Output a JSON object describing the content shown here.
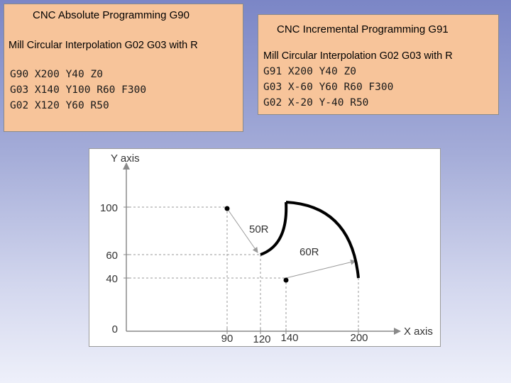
{
  "absolute": {
    "title": "CNC Absolute Programming G90",
    "subtitle": "Mill Circular Interpolation G02 G03 with R",
    "code": [
      "G90 X200 Y40 Z0",
      "G03 X140 Y100 R60 F300",
      "G02 X120 Y60 R50"
    ]
  },
  "incremental": {
    "title": "CNC Incremental Programming G91",
    "subtitle": "Mill Circular Interpolation G02 G03 with R",
    "code": [
      "G91 X200 Y40 Z0",
      "G03 X-60 Y60 R60 F300",
      "G02 X-20 Y-40 R50"
    ]
  },
  "diagram": {
    "y_axis_label": "Y axis",
    "x_axis_label": "X axis",
    "y_ticks": [
      "100",
      "60",
      "40",
      "0"
    ],
    "x_ticks": [
      "90",
      "120",
      "140",
      "200"
    ],
    "radius_labels": {
      "small": "50R",
      "large": "60R"
    },
    "colors": {
      "path": "#000000",
      "guide": "#9a9a9a",
      "axis": "#8a8a8a"
    }
  }
}
